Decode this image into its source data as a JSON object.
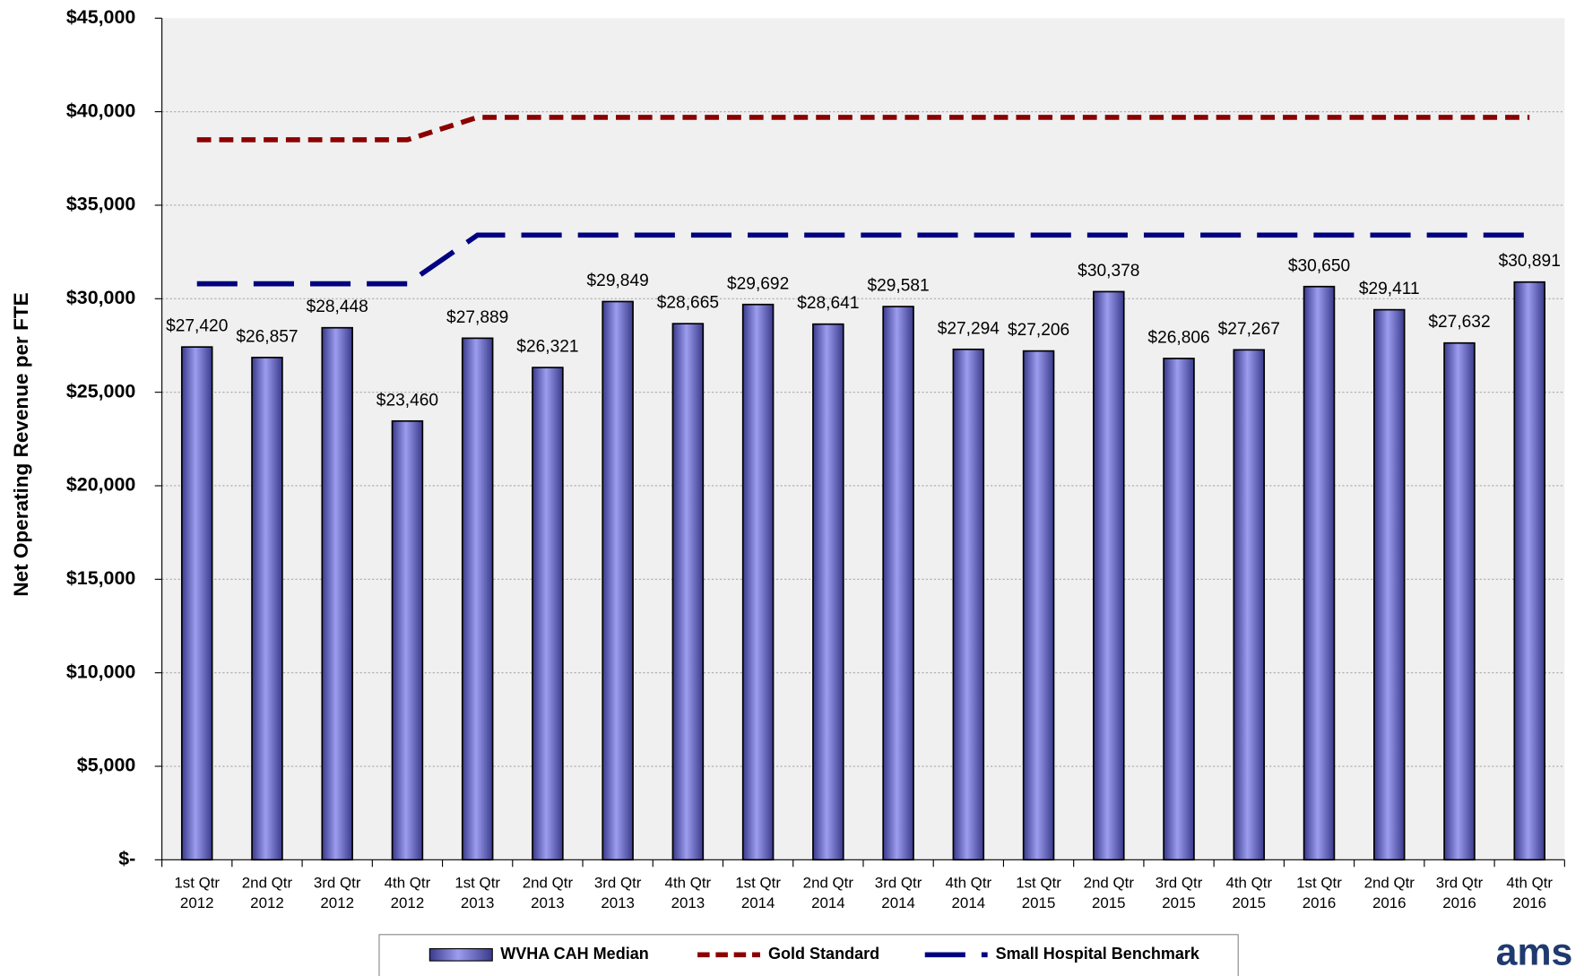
{
  "chart_data": {
    "type": "bar",
    "y_label": "Net Operating Revenue per FTE",
    "categories": [
      "1st Qtr 2012",
      "2nd Qtr 2012",
      "3rd Qtr 2012",
      "4th Qtr 2012",
      "1st Qtr 2013",
      "2nd Qtr 2013",
      "3rd Qtr 2013",
      "4th Qtr 2013",
      "1st Qtr 2014",
      "2nd Qtr 2014",
      "3rd Qtr 2014",
      "4th Qtr 2014",
      "1st Qtr 2015",
      "2nd Qtr 2015",
      "3rd Qtr 2015",
      "4th Qtr 2015",
      "1st Qtr 2016",
      "2nd Qtr 2016",
      "3rd Qtr 2016",
      "4th Qtr 2016"
    ],
    "series": [
      {
        "name": "WVHA CAH Median",
        "type": "bar",
        "color": "#7b7bd8",
        "values": [
          27420,
          26857,
          28448,
          23460,
          27889,
          26321,
          29849,
          28665,
          29692,
          28641,
          29581,
          27294,
          27206,
          30378,
          26806,
          27267,
          30650,
          29411,
          27632,
          30891
        ],
        "value_labels": [
          "$27,420",
          "$26,857",
          "$28,448",
          "$23,460",
          "$27,889",
          "$26,321",
          "$29,849",
          "$28,665",
          "$29,692",
          "$28,641",
          "$29,581",
          "$27,294",
          "$27,206",
          "$30,378",
          "$26,806",
          "$27,267",
          "$30,650",
          "$29,411",
          "$27,632",
          "$30,891"
        ]
      },
      {
        "name": "Gold Standard",
        "type": "line",
        "color": "#8b0000",
        "dash": "short",
        "values": [
          38500,
          38500,
          38500,
          38500,
          39700,
          39700,
          39700,
          39700,
          39700,
          39700,
          39700,
          39700,
          39700,
          39700,
          39700,
          39700,
          39700,
          39700,
          39700,
          39700
        ]
      },
      {
        "name": "Small Hospital Benchmark",
        "type": "line",
        "color": "#000080",
        "dash": "long",
        "values": [
          30800,
          30800,
          30800,
          30800,
          33400,
          33400,
          33400,
          33400,
          33400,
          33400,
          33400,
          33400,
          33400,
          33400,
          33400,
          33400,
          33400,
          33400,
          33400,
          33400
        ]
      }
    ],
    "ylim": [
      0,
      45000
    ],
    "yticks": [
      {
        "value": 0,
        "label": "$-"
      },
      {
        "value": 5000,
        "label": "$5,000"
      },
      {
        "value": 10000,
        "label": "$10,000"
      },
      {
        "value": 15000,
        "label": "$15,000"
      },
      {
        "value": 20000,
        "label": "$20,000"
      },
      {
        "value": 25000,
        "label": "$25,000"
      },
      {
        "value": 30000,
        "label": "$30,000"
      },
      {
        "value": 35000,
        "label": "$35,000"
      },
      {
        "value": 40000,
        "label": "$40,000"
      },
      {
        "value": 45000,
        "label": "$45,000"
      }
    ],
    "grid": true,
    "legend": "bottom",
    "logo": "ams"
  }
}
